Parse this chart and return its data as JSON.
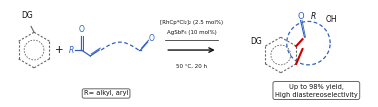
{
  "fig_width": 3.78,
  "fig_height": 1.07,
  "dpi": 100,
  "bg_color": "#ffffff",
  "gray": "#666666",
  "blue": "#3060C0",
  "red": "#CC0000",
  "dark": "#111111",
  "reagent_line1": "[RhCp*Cl₂]₂ (2.5 mol%)",
  "reagent_line2": "AgSbF₆ (10 mol%)",
  "reagent_line3": "50 °C, 20 h",
  "box1_text": "R= alkyl, aryl",
  "box2_line1": "Up to 98% yield,",
  "box2_line2": "High diastereoselectivity"
}
